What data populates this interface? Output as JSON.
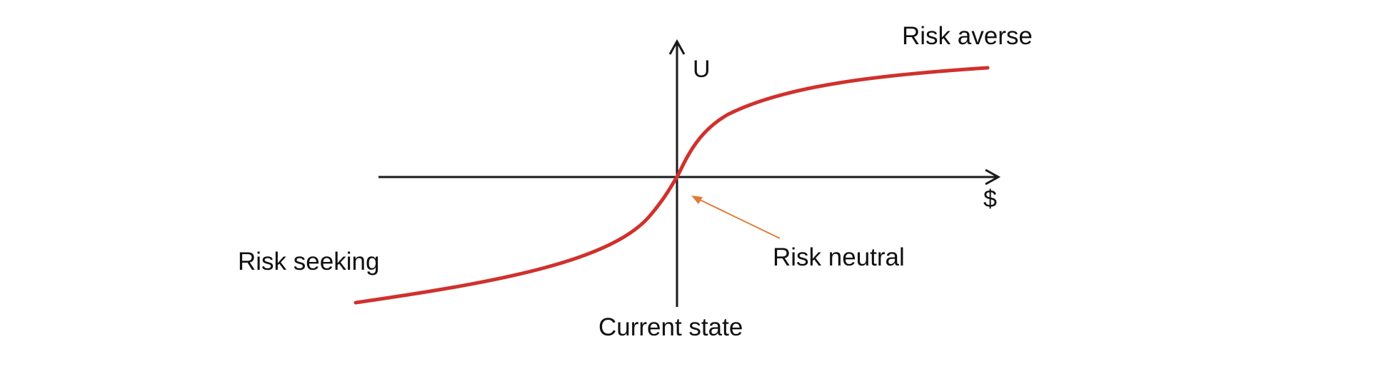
{
  "labels": {
    "y_axis": "U",
    "x_axis": "$",
    "risk_averse": "Risk averse",
    "risk_seeking": "Risk seeking",
    "risk_neutral": "Risk neutral",
    "current_state": "Current state"
  },
  "colors": {
    "curve": "#d0312d",
    "axes": "#1a1a1a",
    "pointer_arrow": "#e07b39",
    "text": "#111111"
  }
}
